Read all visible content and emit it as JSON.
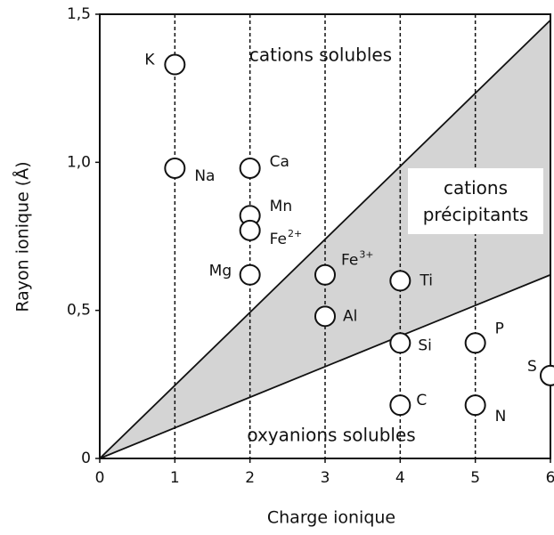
{
  "chart_data": {
    "type": "scatter",
    "xlabel": "Charge ionique",
    "ylabel": "Rayon ionique (Å)",
    "xlim": [
      0,
      6
    ],
    "ylim": [
      0,
      1.5
    ],
    "xticks": [
      0,
      1,
      2,
      3,
      4,
      5,
      6
    ],
    "yticks": [
      0,
      {
        "value": 0.5,
        "label": "0,5"
      },
      {
        "value": 1.0,
        "label": "1,0"
      },
      {
        "value": 1.5,
        "label": "1,5"
      }
    ],
    "points": [
      {
        "label": "K",
        "x": 1,
        "y": 1.33
      },
      {
        "label": "Na",
        "x": 1,
        "y": 0.98
      },
      {
        "label": "Ca",
        "x": 2,
        "y": 0.98
      },
      {
        "label": "Mn",
        "x": 2,
        "y": 0.82
      },
      {
        "label": "Fe",
        "charge": "2+",
        "x": 2,
        "y": 0.77
      },
      {
        "label": "Mg",
        "x": 2,
        "y": 0.62
      },
      {
        "label": "Fe",
        "charge": "3+",
        "x": 3,
        "y": 0.62
      },
      {
        "label": "Al",
        "x": 3,
        "y": 0.48
      },
      {
        "label": "Ti",
        "x": 4,
        "y": 0.6
      },
      {
        "label": "Si",
        "x": 4,
        "y": 0.39
      },
      {
        "label": "C",
        "x": 4,
        "y": 0.18
      },
      {
        "label": "P",
        "x": 5,
        "y": 0.39
      },
      {
        "label": "N",
        "x": 5,
        "y": 0.18
      },
      {
        "label": "S",
        "x": 6,
        "y": 0.28
      }
    ],
    "boundaries": [
      {
        "x": [
          0,
          6
        ],
        "y": [
          0,
          1.48
        ]
      },
      {
        "x": [
          0,
          6
        ],
        "y": [
          0,
          0.62
        ]
      }
    ],
    "region_color": "#d4d4d4",
    "annotations": [
      "cations solubles",
      "cations précipitants",
      "oxyanions solubles"
    ]
  }
}
